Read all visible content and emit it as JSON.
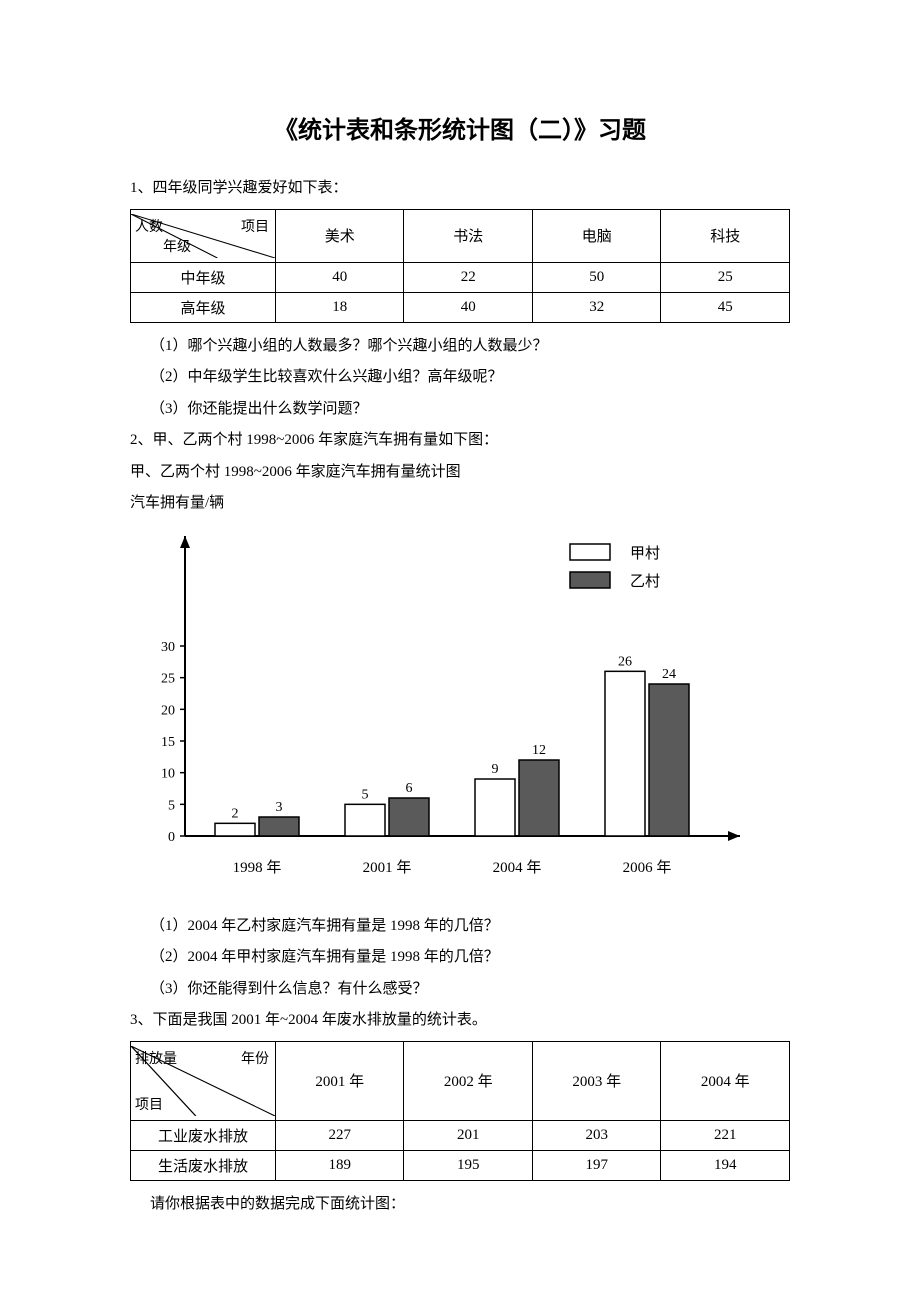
{
  "title": "《统计表和条形统计图（二）》习题",
  "q1": {
    "prompt": "1、四年级同学兴趣爱好如下表：",
    "header_corner": {
      "top_left": "人数",
      "top_right": "项目",
      "bottom": "年级"
    },
    "columns": [
      "美术",
      "书法",
      "电脑",
      "科技"
    ],
    "rows": [
      {
        "label": "中年级",
        "values": [
          "40",
          "22",
          "50",
          "25"
        ]
      },
      {
        "label": "高年级",
        "values": [
          "18",
          "40",
          "32",
          "45"
        ]
      }
    ],
    "sub1": "（1）哪个兴趣小组的人数最多？哪个兴趣小组的人数最少？",
    "sub2": "（2）中年级学生比较喜欢什么兴趣小组？高年级呢？",
    "sub3": "（3）你还能提出什么数学问题？"
  },
  "q2": {
    "prompt": "2、甲、乙两个村 1998~2006 年家庭汽车拥有量如下图：",
    "chart_title": "甲、乙两个村 1998~2006 年家庭汽车拥有量统计图",
    "y_axis_label": "汽车拥有量/辆",
    "legend": {
      "a": "甲村",
      "b": "乙村"
    },
    "y_ticks": [
      "0",
      "5",
      "10",
      "15",
      "20",
      "25",
      "30"
    ],
    "y_max": 30,
    "categories": [
      "1998 年",
      "2001 年",
      "2004 年",
      "2006 年"
    ],
    "series_a_values": [
      2,
      5,
      9,
      26
    ],
    "series_b_values": [
      3,
      6,
      12,
      24
    ],
    "series_a_labels": [
      "2",
      "5",
      "9",
      "26"
    ],
    "series_b_labels": [
      "3",
      "6",
      "12",
      "24"
    ],
    "colors": {
      "series_a_fill": "#ffffff",
      "series_a_stroke": "#000000",
      "series_b_fill": "#5a5a5a",
      "series_b_stroke": "#000000",
      "axis": "#000000",
      "tick_text": "#000000"
    },
    "sub1": "（1）2004 年乙村家庭汽车拥有量是 1998 年的几倍？",
    "sub2": "（2）2004 年甲村家庭汽车拥有量是 1998 年的几倍？",
    "sub3": "（3）你还能得到什么信息？有什么感受？"
  },
  "q3": {
    "prompt": "3、下面是我国 2001 年~2004 年废水排放量的统计表。",
    "header_corner": {
      "top_left": "排放量",
      "top_right": "年份",
      "bottom": "项目"
    },
    "columns": [
      "2001 年",
      "2002 年",
      "2003 年",
      "2004 年"
    ],
    "rows": [
      {
        "label": "工业废水排放",
        "values": [
          "227",
          "201",
          "203",
          "221"
        ]
      },
      {
        "label": "生活废水排放",
        "values": [
          "189",
          "195",
          "197",
          "194"
        ]
      }
    ],
    "footer": "请你根据表中的数据完成下面统计图："
  }
}
